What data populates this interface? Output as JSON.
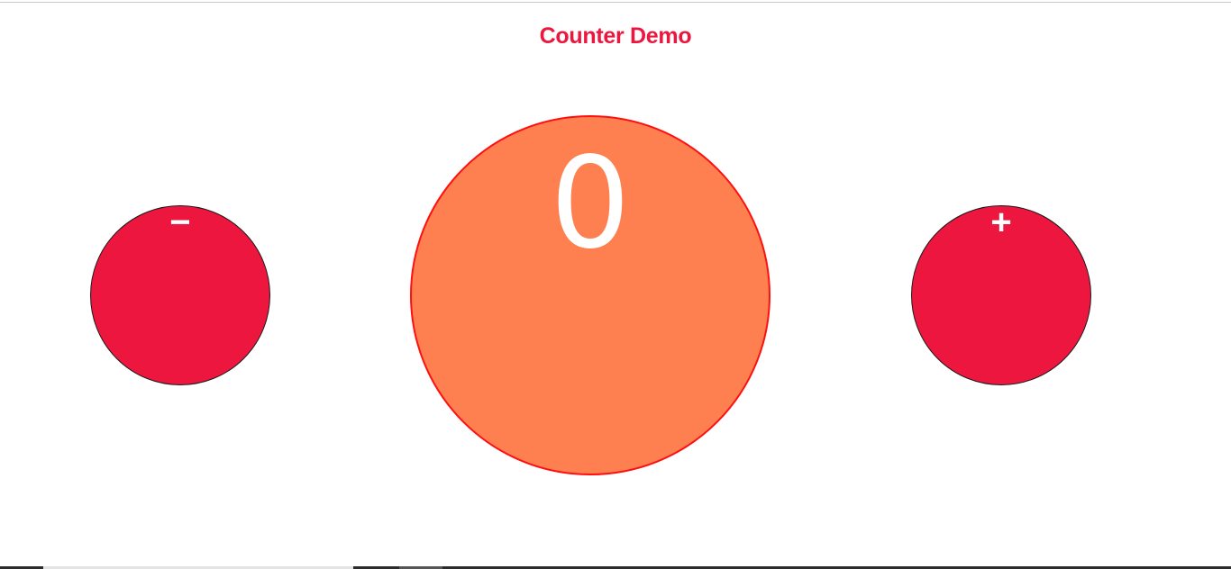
{
  "app": {
    "title": "Counter Demo"
  },
  "counter": {
    "value": "0"
  },
  "controls": {
    "decrement_label": "−",
    "increment_label": "+"
  },
  "colors": {
    "accent": "#ec163f",
    "counter_fill": "#fe7f50",
    "counter_border": "#ff1010",
    "button_fill": "#ec163f"
  }
}
